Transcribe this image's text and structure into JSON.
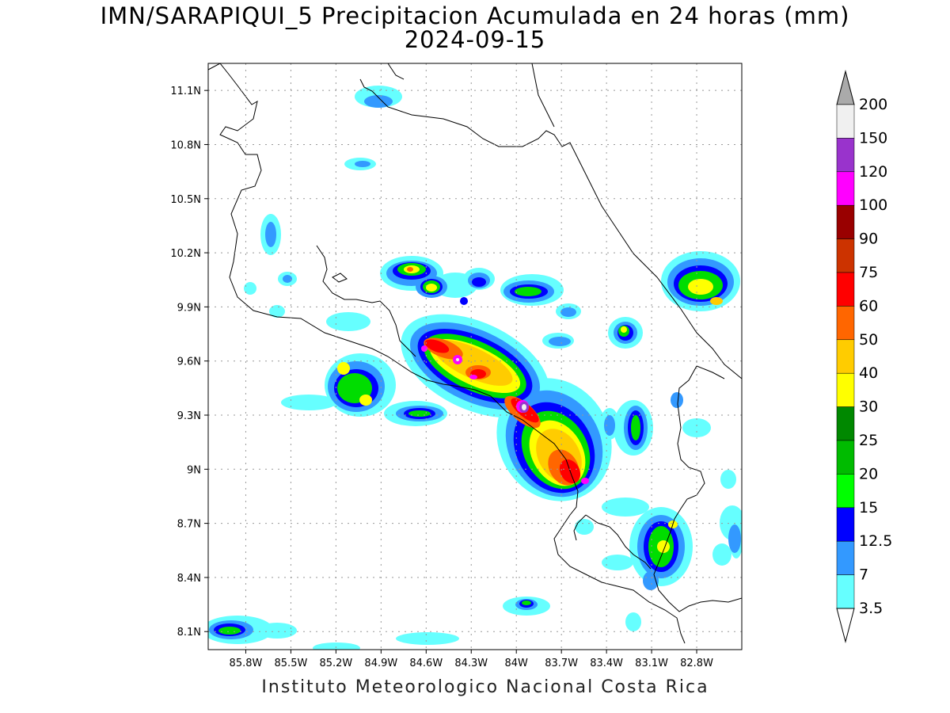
{
  "title": {
    "line1": "IMN/SARAPIQUI_5 Precipitacion Acumulada en 24 horas (mm)",
    "line2": "2024-09-15"
  },
  "credit": "Instituto Meteorologico Nacional Costa Rica",
  "map": {
    "lon_range": [
      -86.05,
      -82.5
    ],
    "lat_range": [
      8.0,
      11.25
    ],
    "lat_ticks": [
      "11.1N",
      "10.8N",
      "10.5N",
      "10.2N",
      "9.9N",
      "9.6N",
      "9.3N",
      "9N",
      "8.7N",
      "8.4N",
      "8.1N"
    ],
    "lon_ticks": [
      "85.8W",
      "85.5W",
      "85.2W",
      "84.9W",
      "84.6W",
      "84.3W",
      "84W",
      "83.7W",
      "83.4W",
      "83.1W",
      "82.8W"
    ],
    "grid": true,
    "colorbar": {
      "labels": [
        "200",
        "150",
        "120",
        "100",
        "90",
        "75",
        "60",
        "50",
        "40",
        "30",
        "25",
        "20",
        "15",
        "12.5",
        "7",
        "3.5"
      ],
      "colors": [
        "#ffffff",
        "#f0f0f0",
        "#9933cc",
        "#ff00ff",
        "#990000",
        "#cc3300",
        "#ff0000",
        "#ff6600",
        "#ffcc00",
        "#ffff00",
        "#008800",
        "#00bb00",
        "#00ff00",
        "#0000ff",
        "#3399ff",
        "#66ffff",
        "#aaaaaa"
      ]
    }
  }
}
